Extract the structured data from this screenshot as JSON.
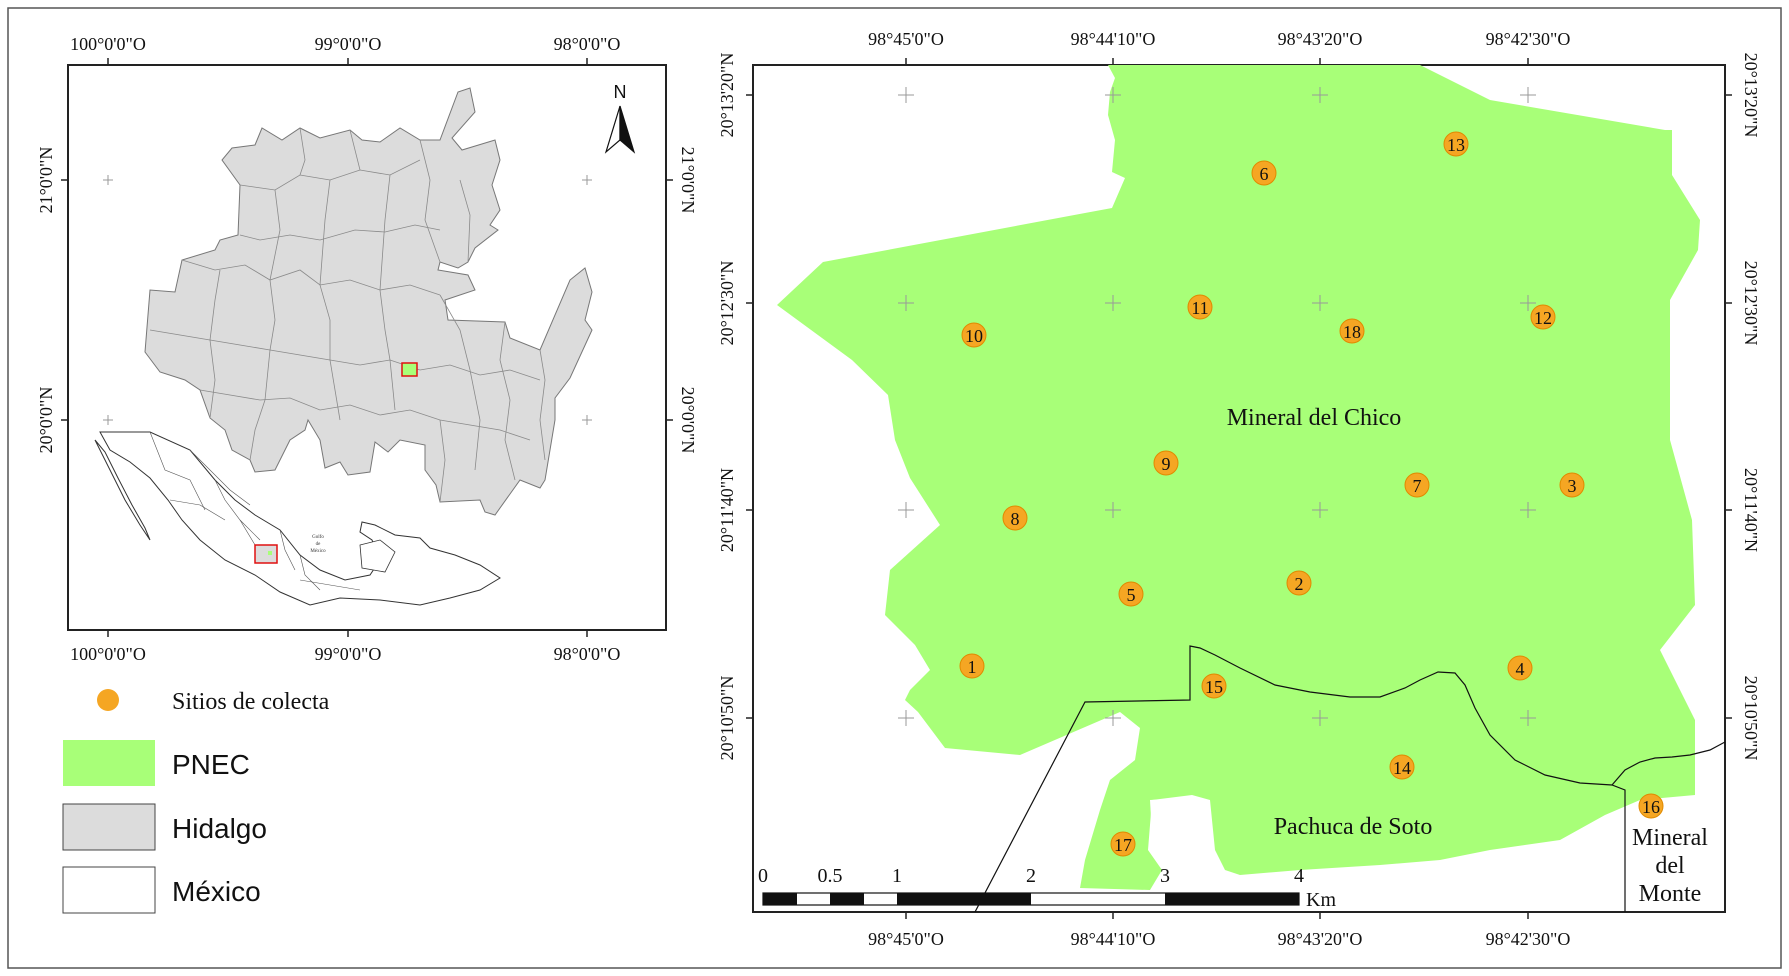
{
  "colors": {
    "pnec": "#a8ff78",
    "hidalgo": "#dcdcdc",
    "site": "#f5a623",
    "site_stroke": "#e08a00",
    "frame": "#222222",
    "grid": "#999999",
    "highlight": "#e01010"
  },
  "inset_map": {
    "top_ticks": [
      "100°0'0\"O",
      "99°0'0\"O",
      "98°0'0\"O"
    ],
    "bottom_ticks": [
      "100°0'0\"O",
      "99°0'0\"O",
      "98°0'0\"O"
    ],
    "left_ticks": [
      "21°0'0\"N",
      "20°0'0\"N"
    ],
    "right_ticks": [
      "21°0'0\"N",
      "20°0'0\"N"
    ],
    "north_label": "N",
    "north_icon": "north-arrow-icon",
    "gulf_label": [
      "Golfo",
      "de",
      "México"
    ]
  },
  "main_map": {
    "top_ticks": [
      "98°45'0\"O",
      "98°44'10\"O",
      "98°43'20\"O",
      "98°42'30\"O"
    ],
    "bottom_ticks": [
      "98°45'0\"O",
      "98°44'10\"O",
      "98°43'20\"O",
      "98°42'30\"O"
    ],
    "left_ticks": [
      "20°13'20\"N",
      "20°12'30\"N",
      "20°11'40\"N",
      "20°10'50\"N"
    ],
    "right_ticks": [
      "20°13'20\"N",
      "20°12'30\"N",
      "20°11'40\"N",
      "20°10'50\"N"
    ],
    "places": {
      "chico": "Mineral del Chico",
      "pachuca": "Pachuca de Soto",
      "monte": [
        "Mineral",
        "del",
        "Monte"
      ]
    },
    "sites": [
      {
        "id": "1"
      },
      {
        "id": "2"
      },
      {
        "id": "3"
      },
      {
        "id": "4"
      },
      {
        "id": "5"
      },
      {
        "id": "6"
      },
      {
        "id": "7"
      },
      {
        "id": "8"
      },
      {
        "id": "9"
      },
      {
        "id": "10"
      },
      {
        "id": "11"
      },
      {
        "id": "12"
      },
      {
        "id": "13"
      },
      {
        "id": "14"
      },
      {
        "id": "15"
      },
      {
        "id": "16"
      },
      {
        "id": "17"
      },
      {
        "id": "18"
      }
    ],
    "scale_bar": {
      "labels": [
        "0",
        "0.5",
        "1",
        "2",
        "3",
        "4"
      ],
      "unit": "Km"
    }
  },
  "legend": {
    "sites": "Sitios de colecta",
    "pnec": "PNEC",
    "hidalgo": "Hidalgo",
    "mexico": "México"
  }
}
